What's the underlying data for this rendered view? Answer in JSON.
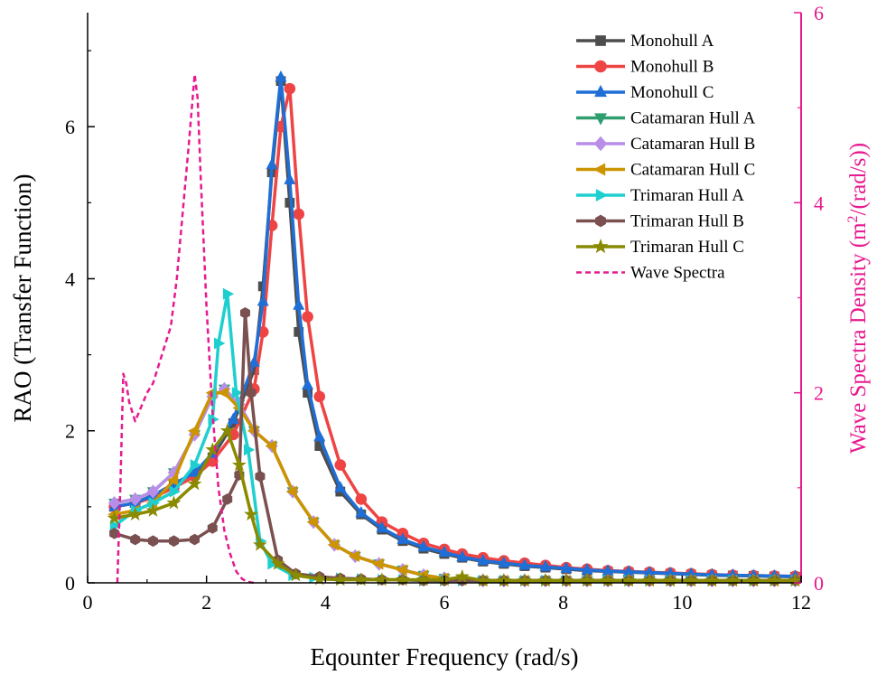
{
  "chart_data": {
    "type": "line",
    "xlabel": "Eqounter Frequency (rad/s)",
    "ylabel": "RAO (Transfer Function)",
    "y2label": "Wave Spectra Density (m²/(rad/s))",
    "y2label_base": "Wave Spectra Density (m",
    "y2label_sup": "2",
    "y2label_tail": "/(rad/s))",
    "xlim": [
      0,
      12
    ],
    "ylim": [
      0,
      7.5
    ],
    "y2lim": [
      0,
      6
    ],
    "xticks": [
      "0",
      "2",
      "4",
      "6",
      "8",
      "10",
      "12"
    ],
    "yticks": [
      "0",
      "2",
      "4",
      "6"
    ],
    "y2ticks": [
      "0",
      "2",
      "4",
      "6"
    ],
    "legend_position": "top-right",
    "colors": {
      "axis": "#000000",
      "secondary_axis": "#e6198f"
    },
    "series": [
      {
        "name": "Monohull A",
        "color": "#4d4d4d",
        "marker": "square",
        "axis": "left",
        "x": [
          0.45,
          0.8,
          1.1,
          1.45,
          1.8,
          2.1,
          2.45,
          2.8,
          2.95,
          3.1,
          3.25,
          3.4,
          3.55,
          3.7,
          3.9,
          4.25,
          4.6,
          4.95,
          5.3,
          5.65,
          6,
          6.3,
          6.65,
          7,
          7.35,
          7.7,
          8.05,
          8.4,
          8.75,
          9.1,
          9.45,
          9.8,
          10.15,
          10.5,
          10.85,
          11.2,
          11.55,
          11.9
        ],
        "y": [
          1.0,
          1.05,
          1.15,
          1.3,
          1.45,
          1.65,
          2.1,
          2.8,
          3.9,
          5.4,
          6.6,
          5.0,
          3.3,
          2.5,
          1.8,
          1.2,
          0.9,
          0.7,
          0.55,
          0.45,
          0.38,
          0.33,
          0.28,
          0.25,
          0.22,
          0.2,
          0.18,
          0.16,
          0.15,
          0.14,
          0.13,
          0.12,
          0.11,
          0.1,
          0.095,
          0.09,
          0.085,
          0.08
        ]
      },
      {
        "name": "Monohull B",
        "color": "#ef4444",
        "marker": "circle",
        "axis": "left",
        "x": [
          0.45,
          0.8,
          1.1,
          1.45,
          1.8,
          2.1,
          2.45,
          2.8,
          2.95,
          3.1,
          3.25,
          3.4,
          3.55,
          3.7,
          3.9,
          4.25,
          4.6,
          4.95,
          5.3,
          5.65,
          6,
          6.3,
          6.65,
          7,
          7.35,
          7.7,
          8.05,
          8.4,
          8.75,
          9.1,
          9.45,
          9.8,
          10.15,
          10.5,
          10.85,
          11.2,
          11.55,
          11.9
        ],
        "y": [
          1.0,
          1.05,
          1.12,
          1.25,
          1.4,
          1.6,
          1.95,
          2.55,
          3.3,
          4.7,
          6.0,
          6.5,
          4.85,
          3.5,
          2.45,
          1.55,
          1.1,
          0.8,
          0.65,
          0.52,
          0.44,
          0.38,
          0.33,
          0.29,
          0.26,
          0.23,
          0.2,
          0.18,
          0.16,
          0.15,
          0.14,
          0.13,
          0.12,
          0.11,
          0.1,
          0.095,
          0.09,
          0.085
        ]
      },
      {
        "name": "Monohull C",
        "color": "#1f6fd6",
        "marker": "triangle-up",
        "axis": "left",
        "x": [
          0.45,
          0.8,
          1.1,
          1.45,
          1.8,
          2.1,
          2.45,
          2.8,
          2.95,
          3.1,
          3.25,
          3.4,
          3.55,
          3.7,
          3.9,
          4.25,
          4.6,
          4.95,
          5.3,
          5.65,
          6,
          6.3,
          6.65,
          7,
          7.35,
          7.7,
          8.05,
          8.4,
          8.75,
          9.1,
          9.45,
          9.8,
          10.15,
          10.5,
          10.85,
          11.2,
          11.55,
          11.9
        ],
        "y": [
          1.0,
          1.05,
          1.15,
          1.3,
          1.45,
          1.7,
          2.15,
          2.9,
          3.7,
          5.5,
          6.65,
          5.3,
          3.65,
          2.6,
          1.92,
          1.25,
          0.92,
          0.72,
          0.57,
          0.47,
          0.4,
          0.34,
          0.29,
          0.26,
          0.23,
          0.21,
          0.19,
          0.17,
          0.155,
          0.145,
          0.135,
          0.125,
          0.115,
          0.105,
          0.1,
          0.095,
          0.09,
          0.085
        ]
      },
      {
        "name": "Catamaran Hull A",
        "color": "#2e9e6f",
        "marker": "triangle-down",
        "axis": "left",
        "x": [
          0.45,
          0.8,
          1.1,
          1.45,
          1.8,
          2.1,
          2.3,
          2.55,
          2.8,
          3.1,
          3.45,
          3.8,
          4.15,
          4.5,
          4.9,
          5.3,
          5.65,
          6,
          6.3,
          6.65,
          7,
          7.35,
          7.7,
          8.05,
          8.4,
          8.75,
          9.1,
          9.45,
          9.8,
          10.15,
          10.5,
          10.85,
          11.2,
          11.55,
          11.9
        ],
        "y": [
          1.05,
          1.1,
          1.2,
          1.45,
          1.95,
          2.45,
          2.55,
          2.35,
          2.0,
          1.8,
          1.2,
          0.8,
          0.5,
          0.35,
          0.25,
          0.17,
          0.1,
          0.06,
          0.04,
          0.03,
          0.03,
          0.03,
          0.03,
          0.03,
          0.03,
          0.03,
          0.03,
          0.03,
          0.03,
          0.03,
          0.03,
          0.03,
          0.03,
          0.03,
          0.03
        ]
      },
      {
        "name": "Catamaran Hull B",
        "color": "#b98ee8",
        "marker": "diamond",
        "axis": "left",
        "x": [
          0.45,
          0.8,
          1.1,
          1.45,
          1.8,
          2.1,
          2.3,
          2.55,
          2.8,
          3.1,
          3.45,
          3.8,
          4.15,
          4.5,
          4.9,
          5.3,
          5.65,
          6,
          6.3,
          6.65,
          7,
          7.35,
          7.7,
          8.05,
          8.4,
          8.75,
          9.1,
          9.45,
          9.8,
          10.15,
          10.5,
          10.85,
          11.2,
          11.55,
          11.9
        ],
        "y": [
          1.05,
          1.1,
          1.2,
          1.45,
          1.95,
          2.45,
          2.55,
          2.35,
          2.0,
          1.8,
          1.2,
          0.8,
          0.5,
          0.35,
          0.25,
          0.17,
          0.1,
          0.06,
          0.04,
          0.03,
          0.03,
          0.03,
          0.03,
          0.03,
          0.03,
          0.03,
          0.03,
          0.03,
          0.03,
          0.03,
          0.03,
          0.03,
          0.03,
          0.03,
          0.03
        ]
      },
      {
        "name": "Catamaran Hull C",
        "color": "#cc9400",
        "marker": "triangle-left",
        "axis": "left",
        "x": [
          0.45,
          0.8,
          1.1,
          1.45,
          1.8,
          2.1,
          2.3,
          2.55,
          2.8,
          3.1,
          3.45,
          3.8,
          4.15,
          4.5,
          4.9,
          5.3,
          5.65,
          6,
          6.3,
          6.65,
          7,
          7.35,
          7.7,
          8.05,
          8.4,
          8.75,
          9.1,
          9.45,
          9.8,
          10.15,
          10.5,
          10.85,
          11.2,
          11.55,
          11.9
        ],
        "y": [
          0.9,
          0.95,
          1.05,
          1.35,
          2.0,
          2.5,
          2.5,
          2.3,
          2.0,
          1.8,
          1.2,
          0.8,
          0.5,
          0.35,
          0.25,
          0.17,
          0.1,
          0.06,
          0.04,
          0.03,
          0.03,
          0.03,
          0.03,
          0.03,
          0.03,
          0.03,
          0.03,
          0.03,
          0.03,
          0.03,
          0.03,
          0.03,
          0.03,
          0.03,
          0.03
        ]
      },
      {
        "name": "Trimaran Hull A",
        "color": "#1fcfcf",
        "marker": "triangle-right",
        "axis": "left",
        "x": [
          0.45,
          0.8,
          1.1,
          1.45,
          1.8,
          2.1,
          2.2,
          2.35,
          2.5,
          2.7,
          2.9,
          3.1,
          3.45,
          3.8,
          4.25,
          4.6,
          4.95,
          5.3,
          5.65,
          6,
          6.3,
          6.65,
          7,
          7.35,
          7.7,
          8.05,
          8.4,
          8.75,
          9.1,
          9.45,
          9.8,
          10.15,
          10.5,
          10.85,
          11.2,
          11.55,
          11.9
        ],
        "y": [
          0.75,
          0.95,
          1.05,
          1.2,
          1.55,
          2.15,
          3.15,
          3.8,
          2.5,
          1.75,
          0.55,
          0.25,
          0.1,
          0.07,
          0.06,
          0.05,
          0.04,
          0.04,
          0.03,
          0.03,
          0.03,
          0.03,
          0.03,
          0.03,
          0.03,
          0.03,
          0.03,
          0.03,
          0.03,
          0.03,
          0.03,
          0.03,
          0.03,
          0.03,
          0.03,
          0.03,
          0.03
        ]
      },
      {
        "name": "Trimaran Hull B",
        "color": "#7a5050",
        "marker": "hexagon",
        "axis": "left",
        "x": [
          0.45,
          0.8,
          1.1,
          1.45,
          1.8,
          2.1,
          2.35,
          2.55,
          2.65,
          2.75,
          2.9,
          3.2,
          3.5,
          3.9,
          4.25,
          4.6,
          4.95,
          5.3,
          5.65,
          6,
          6.3,
          6.65,
          7,
          7.35,
          7.7,
          8.05,
          8.4,
          8.75,
          9.1,
          9.45,
          9.8,
          10.15,
          10.5,
          10.85,
          11.2,
          11.55,
          11.9
        ],
        "y": [
          0.65,
          0.57,
          0.55,
          0.55,
          0.57,
          0.72,
          1.1,
          1.42,
          3.55,
          2.5,
          1.4,
          0.3,
          0.12,
          0.08,
          0.06,
          0.05,
          0.04,
          0.04,
          0.03,
          0.03,
          0.03,
          0.03,
          0.03,
          0.03,
          0.03,
          0.03,
          0.03,
          0.03,
          0.03,
          0.03,
          0.03,
          0.03,
          0.03,
          0.03,
          0.03,
          0.03,
          0.03
        ]
      },
      {
        "name": "Trimaran Hull C",
        "color": "#8a8a00",
        "marker": "star",
        "axis": "left",
        "x": [
          0.45,
          0.8,
          1.1,
          1.45,
          1.8,
          2.1,
          2.35,
          2.55,
          2.75,
          2.9,
          3.2,
          3.5,
          3.9,
          4.25,
          4.6,
          4.95,
          5.3,
          5.65,
          6,
          6.3,
          6.65,
          7,
          7.35,
          7.7,
          8.05,
          8.4,
          8.75,
          9.1,
          9.45,
          9.8,
          10.15,
          10.5,
          10.85,
          11.2,
          11.55,
          11.9
        ],
        "y": [
          0.85,
          0.9,
          0.95,
          1.05,
          1.3,
          1.75,
          2.0,
          1.55,
          0.9,
          0.5,
          0.25,
          0.1,
          0.05,
          0.04,
          0.04,
          0.04,
          0.04,
          0.04,
          0.04,
          0.08,
          0.03,
          0.03,
          0.03,
          0.03,
          0.03,
          0.03,
          0.03,
          0.03,
          0.03,
          0.03,
          0.03,
          0.03,
          0.03,
          0.03,
          0.03,
          0.03
        ]
      },
      {
        "name": "Wave Spectra",
        "color": "#e6198f",
        "marker": "none",
        "dashed": true,
        "axis": "right",
        "x": [
          0.5,
          0.55,
          0.6,
          0.65,
          0.7,
          0.8,
          0.9,
          1.0,
          1.1,
          1.2,
          1.3,
          1.4,
          1.5,
          1.6,
          1.7,
          1.8,
          1.85,
          1.9,
          2.0,
          2.1,
          2.2,
          2.3,
          2.4,
          2.5,
          2.6,
          2.7,
          2.8
        ],
        "y": [
          0.0,
          1.0,
          2.2,
          2.1,
          1.9,
          1.7,
          1.85,
          2.0,
          2.1,
          2.3,
          2.5,
          2.7,
          3.2,
          3.9,
          4.6,
          5.35,
          5.1,
          4.3,
          2.9,
          1.8,
          1.0,
          0.55,
          0.3,
          0.12,
          0.04,
          0.01,
          0.0
        ]
      }
    ]
  }
}
